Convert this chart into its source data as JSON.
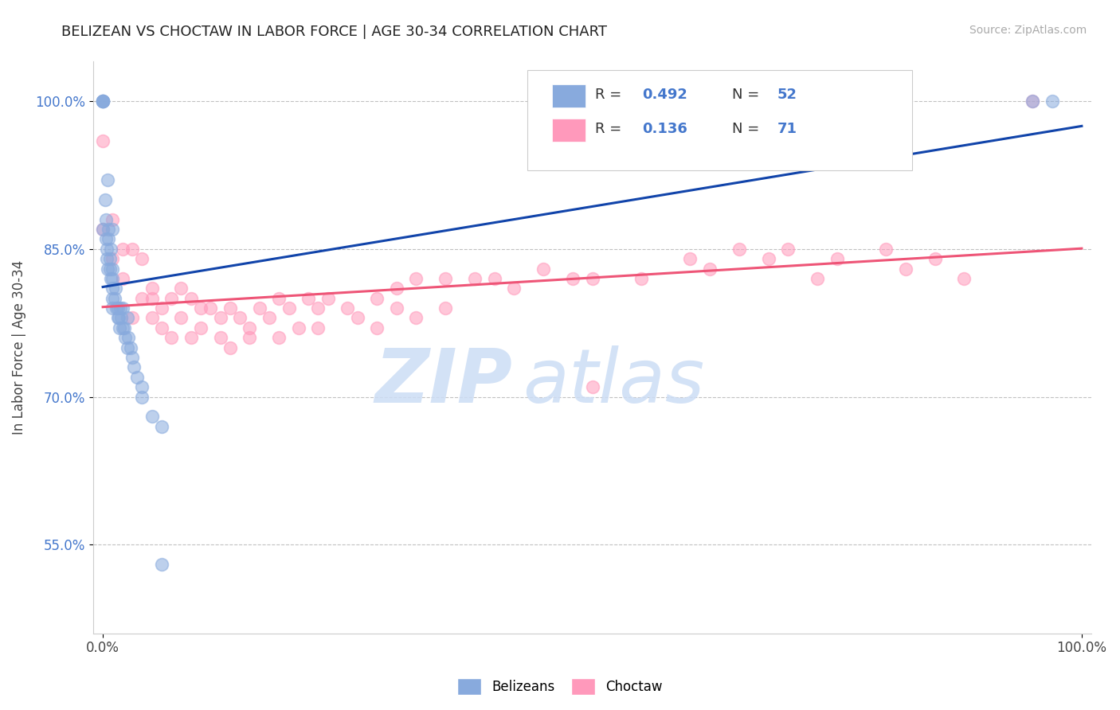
{
  "title": "BELIZEAN VS CHOCTAW IN LABOR FORCE | AGE 30-34 CORRELATION CHART",
  "source_text": "Source: ZipAtlas.com",
  "ylabel": "In Labor Force | Age 30-34",
  "xlim": [
    -0.01,
    1.01
  ],
  "ylim": [
    0.46,
    1.04
  ],
  "yticks": [
    0.55,
    0.7,
    0.85,
    1.0
  ],
  "ytick_labels": [
    "55.0%",
    "70.0%",
    "85.0%",
    "100.0%"
  ],
  "xticks": [
    0.0,
    1.0
  ],
  "xtick_labels": [
    "0.0%",
    "100.0%"
  ],
  "blue_color": "#88AADD",
  "pink_color": "#FF99BB",
  "blue_line_color": "#1144AA",
  "pink_line_color": "#EE5577",
  "watermark_zip": "ZIP",
  "watermark_atlas": "atlas",
  "blue_scatter_x": [
    0.0,
    0.0,
    0.0,
    0.0,
    0.0,
    0.0,
    0.002,
    0.003,
    0.003,
    0.004,
    0.004,
    0.005,
    0.005,
    0.006,
    0.006,
    0.007,
    0.007,
    0.008,
    0.008,
    0.01,
    0.01,
    0.01,
    0.01,
    0.01,
    0.01,
    0.012,
    0.013,
    0.014,
    0.015,
    0.015,
    0.016,
    0.017,
    0.018,
    0.019,
    0.02,
    0.02,
    0.022,
    0.023,
    0.025,
    0.025,
    0.026,
    0.028,
    0.03,
    0.032,
    0.035,
    0.04,
    0.04,
    0.05,
    0.06,
    0.06,
    0.95,
    0.97
  ],
  "blue_scatter_y": [
    1.0,
    1.0,
    1.0,
    1.0,
    1.0,
    0.87,
    0.9,
    0.88,
    0.86,
    0.85,
    0.84,
    0.83,
    0.92,
    0.86,
    0.87,
    0.84,
    0.83,
    0.85,
    0.82,
    0.83,
    0.82,
    0.81,
    0.8,
    0.79,
    0.87,
    0.8,
    0.81,
    0.79,
    0.78,
    0.79,
    0.78,
    0.77,
    0.79,
    0.78,
    0.77,
    0.79,
    0.77,
    0.76,
    0.75,
    0.78,
    0.76,
    0.75,
    0.74,
    0.73,
    0.72,
    0.71,
    0.7,
    0.68,
    0.67,
    0.53,
    1.0,
    1.0
  ],
  "pink_scatter_x": [
    0.0,
    0.0,
    0.01,
    0.01,
    0.02,
    0.02,
    0.03,
    0.03,
    0.04,
    0.04,
    0.05,
    0.05,
    0.05,
    0.06,
    0.06,
    0.07,
    0.07,
    0.08,
    0.08,
    0.09,
    0.09,
    0.1,
    0.1,
    0.11,
    0.12,
    0.12,
    0.13,
    0.13,
    0.14,
    0.15,
    0.15,
    0.16,
    0.17,
    0.18,
    0.18,
    0.19,
    0.2,
    0.21,
    0.22,
    0.22,
    0.23,
    0.25,
    0.26,
    0.28,
    0.28,
    0.3,
    0.3,
    0.32,
    0.32,
    0.35,
    0.35,
    0.38,
    0.4,
    0.42,
    0.45,
    0.48,
    0.5,
    0.5,
    0.55,
    0.6,
    0.62,
    0.65,
    0.68,
    0.7,
    0.73,
    0.75,
    0.8,
    0.82,
    0.85,
    0.88,
    0.95
  ],
  "pink_scatter_y": [
    0.96,
    0.87,
    0.88,
    0.84,
    0.85,
    0.82,
    0.85,
    0.78,
    0.84,
    0.8,
    0.81,
    0.8,
    0.78,
    0.79,
    0.77,
    0.8,
    0.76,
    0.81,
    0.78,
    0.8,
    0.76,
    0.79,
    0.77,
    0.79,
    0.78,
    0.76,
    0.79,
    0.75,
    0.78,
    0.77,
    0.76,
    0.79,
    0.78,
    0.8,
    0.76,
    0.79,
    0.77,
    0.8,
    0.79,
    0.77,
    0.8,
    0.79,
    0.78,
    0.8,
    0.77,
    0.81,
    0.79,
    0.82,
    0.78,
    0.82,
    0.79,
    0.82,
    0.82,
    0.81,
    0.83,
    0.82,
    0.82,
    0.71,
    0.82,
    0.84,
    0.83,
    0.85,
    0.84,
    0.85,
    0.82,
    0.84,
    0.85,
    0.83,
    0.84,
    0.82,
    1.0
  ]
}
